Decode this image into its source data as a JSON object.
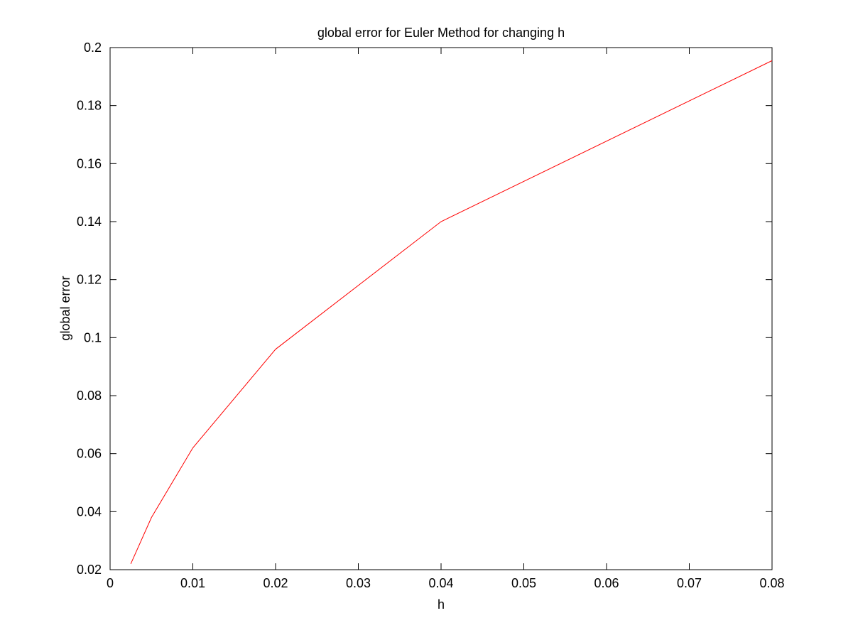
{
  "chart_data": {
    "type": "line",
    "title": "global error for Euler Method for changing h",
    "xlabel": "h",
    "ylabel": "global error",
    "xlim": [
      0,
      0.08
    ],
    "ylim": [
      0.02,
      0.2
    ],
    "x_ticks": [
      "0",
      "0.01",
      "0.02",
      "0.03",
      "0.04",
      "0.05",
      "0.06",
      "0.07",
      "0.08"
    ],
    "y_ticks": [
      "0.02",
      "0.04",
      "0.06",
      "0.08",
      "0.1",
      "0.12",
      "0.14",
      "0.16",
      "0.18",
      "0.2"
    ],
    "grid": false,
    "series": [
      {
        "color": "#ff0000",
        "x": [
          0.0025,
          0.005,
          0.01,
          0.02,
          0.04,
          0.08
        ],
        "y": [
          0.022,
          0.038,
          0.062,
          0.096,
          0.14,
          0.1955
        ]
      }
    ]
  }
}
